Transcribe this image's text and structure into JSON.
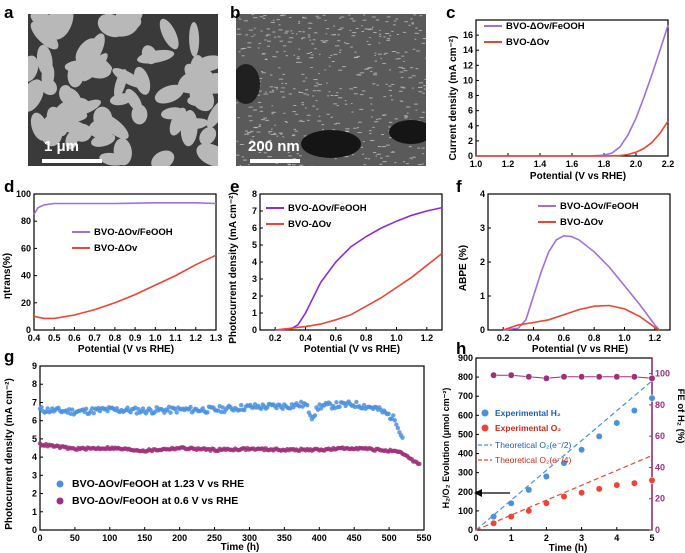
{
  "panels": {
    "a": {
      "letter": "a",
      "scale_bar": "1 μm"
    },
    "b": {
      "letter": "b",
      "scale_bar": "200 nm"
    },
    "c": {
      "letter": "c",
      "xlabel": "Potential (V vs RHE)",
      "ylabel": "Current density (mA cm⁻²)",
      "legend": [
        "BVO-ΔOv/FeOOH",
        "BVO-ΔOv"
      ]
    },
    "d": {
      "letter": "d",
      "xlabel": "Potential (V vs RHE)",
      "ylabel": "ηtrans(%)",
      "legend": [
        "BVO-ΔOv/FeOOH",
        "BVO-ΔOv"
      ]
    },
    "e": {
      "letter": "e",
      "xlabel": "Potential (V vs RHE)",
      "ylabel": "Photocurrent density (mA cm⁻²)",
      "legend": [
        "BVO-ΔOv/FeOOH",
        "BVO-ΔOv"
      ]
    },
    "f": {
      "letter": "f",
      "xlabel": "Potential (V vs RHE)",
      "ylabel": "ABPE (%)",
      "legend": [
        "BVO-ΔOv/FeOOH",
        "BVO-ΔOv"
      ]
    },
    "g": {
      "letter": "g",
      "xlabel": "Time (h)",
      "ylabel": "Photocurrent density (mA cm⁻²)",
      "legend": [
        "BVO-ΔOv/FeOOH at 1.23 V vs RHE",
        "BVO-ΔOv/FeOOH at 0.6 V vs RHE"
      ]
    },
    "h": {
      "letter": "h",
      "xlabel": "Time (h)",
      "ylabel": "H₂/O₂ Evolution (μmol cm⁻²)",
      "ylabel2": "FE of H₂ (%)",
      "legend": [
        "Experimental H₂",
        "Experimental O₂",
        "Theoretical O₂(e⁻/2)",
        "Theoretical O₂(e⁻/4)"
      ]
    }
  },
  "colors": {
    "purple": "#a070e0",
    "red": "#ee4433",
    "blue": "#4a90e0",
    "magenta": "#a0307a",
    "violet": "#8a2be2"
  },
  "chart_data": [
    {
      "id": "c",
      "type": "line",
      "xlim": [
        1.0,
        2.2
      ],
      "ylim": [
        0,
        18
      ],
      "xticks": [
        "1.0",
        "1.2",
        "1.4",
        "1.6",
        "1.8",
        "2.0",
        "2.2"
      ],
      "yticks": [
        "0",
        "2",
        "4",
        "6",
        "8",
        "10",
        "12",
        "14",
        "16"
      ],
      "series": [
        {
          "name": "BVO-ΔOv/FeOOH",
          "x": [
            1.0,
            1.7,
            1.8,
            1.85,
            1.9,
            1.95,
            2.0,
            2.05,
            2.1,
            2.15,
            2.2
          ],
          "y": [
            0,
            0,
            0.1,
            0.4,
            1.2,
            2.8,
            5.0,
            7.8,
            10.8,
            14.0,
            17.3
          ]
        },
        {
          "name": "BVO-ΔOv",
          "x": [
            1.0,
            1.8,
            1.9,
            1.95,
            2.0,
            2.05,
            2.1,
            2.15,
            2.2
          ],
          "y": [
            0,
            0,
            0.05,
            0.2,
            0.5,
            1.0,
            1.8,
            3.0,
            4.6
          ]
        }
      ]
    },
    {
      "id": "d",
      "type": "line",
      "xlim": [
        0.4,
        1.3
      ],
      "ylim": [
        0,
        100
      ],
      "xticks": [
        "0.4",
        "0.5",
        "0.6",
        "0.7",
        "0.8",
        "0.9",
        "1.0",
        "1.1",
        "1.2",
        "1.3"
      ],
      "yticks": [
        "0",
        "20",
        "40",
        "60",
        "80",
        "100"
      ],
      "series": [
        {
          "name": "BVO-ΔOv/FeOOH",
          "x": [
            0.4,
            0.42,
            0.45,
            0.5,
            0.6,
            0.8,
            1.0,
            1.2,
            1.3
          ],
          "y": [
            85,
            90,
            92,
            93,
            93,
            93,
            93.5,
            93.5,
            93
          ]
        },
        {
          "name": "BVO-ΔOv",
          "x": [
            0.4,
            0.45,
            0.5,
            0.6,
            0.7,
            0.8,
            0.9,
            1.0,
            1.1,
            1.2,
            1.3
          ],
          "y": [
            10,
            8.5,
            8.5,
            11,
            15,
            20,
            26,
            33,
            40,
            48,
            55
          ]
        }
      ]
    },
    {
      "id": "e",
      "type": "line",
      "xlim": [
        0.1,
        1.3
      ],
      "ylim": [
        0,
        8
      ],
      "xticks": [
        "0.2",
        "0.4",
        "0.6",
        "0.8",
        "1.0",
        "1.2"
      ],
      "yticks": [
        "0",
        "1",
        "2",
        "3",
        "4",
        "5",
        "6",
        "7",
        "8"
      ],
      "series": [
        {
          "name": "BVO-ΔOv/FeOOH",
          "x": [
            0.2,
            0.3,
            0.35,
            0.4,
            0.45,
            0.5,
            0.6,
            0.7,
            0.8,
            0.9,
            1.0,
            1.1,
            1.2,
            1.3
          ],
          "y": [
            0,
            0.05,
            0.3,
            1.0,
            1.9,
            2.8,
            4.0,
            4.9,
            5.5,
            6.0,
            6.4,
            6.75,
            7.0,
            7.2
          ]
        },
        {
          "name": "BVO-ΔOv",
          "x": [
            0.2,
            0.3,
            0.4,
            0.5,
            0.6,
            0.7,
            0.8,
            0.9,
            1.0,
            1.1,
            1.2,
            1.3
          ],
          "y": [
            0,
            0.1,
            0.2,
            0.35,
            0.6,
            0.9,
            1.4,
            1.9,
            2.5,
            3.1,
            3.8,
            4.5
          ]
        }
      ]
    },
    {
      "id": "f",
      "type": "line",
      "xlim": [
        0.1,
        1.3
      ],
      "ylim": [
        0,
        4
      ],
      "xticks": [
        "0.2",
        "0.4",
        "0.6",
        "0.8",
        "1.0",
        "1.2"
      ],
      "yticks": [
        "0",
        "1",
        "2",
        "3",
        "4"
      ],
      "series": [
        {
          "name": "BVO-ΔOv/FeOOH",
          "x": [
            0.2,
            0.3,
            0.35,
            0.4,
            0.45,
            0.5,
            0.55,
            0.6,
            0.65,
            0.7,
            0.8,
            0.9,
            1.0,
            1.1,
            1.2,
            1.23
          ],
          "y": [
            0,
            0.05,
            0.3,
            1.0,
            1.7,
            2.3,
            2.65,
            2.77,
            2.75,
            2.65,
            2.3,
            1.85,
            1.3,
            0.75,
            0.15,
            0
          ]
        },
        {
          "name": "BVO-ΔOv",
          "x": [
            0.2,
            0.3,
            0.4,
            0.5,
            0.6,
            0.7,
            0.8,
            0.9,
            1.0,
            1.1,
            1.2,
            1.23
          ],
          "y": [
            0,
            0.15,
            0.22,
            0.3,
            0.45,
            0.6,
            0.7,
            0.72,
            0.62,
            0.4,
            0.08,
            0
          ]
        }
      ]
    },
    {
      "id": "g",
      "type": "scatter",
      "xlim": [
        0,
        550
      ],
      "ylim": [
        0,
        9
      ],
      "xticks": [
        "0",
        "50",
        "100",
        "150",
        "200",
        "250",
        "300",
        "350",
        "400",
        "450",
        "500",
        "550"
      ],
      "yticks": [
        "0",
        "1",
        "2",
        "3",
        "4",
        "5",
        "6",
        "7",
        "8",
        "9"
      ],
      "series": [
        {
          "name": "BVO-ΔOv/FeOOH at 1.23 V vs RHE",
          "x": [
            0,
            50,
            100,
            150,
            200,
            250,
            300,
            350,
            380,
            390,
            400,
            450,
            480,
            500,
            510,
            520
          ],
          "y": [
            6.6,
            6.5,
            6.6,
            6.55,
            6.6,
            6.6,
            6.75,
            6.8,
            6.9,
            6.2,
            6.8,
            6.9,
            6.7,
            6.3,
            6.0,
            5.0
          ]
        },
        {
          "name": "BVO-ΔOv/FeOOH at 0.6 V vs RHE",
          "x": [
            0,
            50,
            100,
            150,
            200,
            250,
            300,
            350,
            400,
            450,
            500,
            520,
            530,
            545
          ],
          "y": [
            4.7,
            4.45,
            4.5,
            4.35,
            4.5,
            4.4,
            4.45,
            4.4,
            4.4,
            4.5,
            4.35,
            4.2,
            3.9,
            3.6
          ]
        }
      ]
    },
    {
      "id": "h",
      "type": "scatter",
      "xlim": [
        0,
        5
      ],
      "ylim": [
        0,
        900
      ],
      "y2lim": [
        0,
        110
      ],
      "xticks": [
        "0",
        "1",
        "2",
        "3",
        "4",
        "5"
      ],
      "yticks": [
        "0",
        "100",
        "200",
        "300",
        "400",
        "500",
        "600",
        "700",
        "800",
        "900"
      ],
      "y2ticks": [
        "0",
        "20",
        "40",
        "60",
        "80",
        "100"
      ],
      "series": [
        {
          "name": "Experimental H₂",
          "x": [
            0.5,
            1.0,
            1.5,
            2.0,
            2.5,
            3.0,
            3.5,
            4.0,
            4.5,
            5.0
          ],
          "y": [
            70,
            140,
            210,
            280,
            350,
            420,
            490,
            560,
            625,
            690
          ]
        },
        {
          "name": "Experimental O₂",
          "x": [
            0.5,
            1.0,
            1.5,
            2.0,
            2.5,
            3.0,
            3.5,
            4.0,
            4.5,
            5.0
          ],
          "y": [
            35,
            70,
            100,
            140,
            175,
            195,
            215,
            235,
            245,
            260
          ]
        },
        {
          "name": "Theoretical O₂(e⁻/2)",
          "x": [
            0,
            5
          ],
          "y": [
            0,
            780
          ]
        },
        {
          "name": "Theoretical O₂(e⁻/4)",
          "x": [
            0,
            5
          ],
          "y": [
            0,
            390
          ]
        },
        {
          "name": "FE of H₂",
          "axis": "right",
          "x": [
            0.5,
            1.0,
            1.5,
            2.0,
            2.5,
            3.0,
            3.5,
            4.0,
            4.5,
            5.0
          ],
          "y": [
            99,
            99,
            98,
            97,
            98,
            98,
            98,
            98,
            98,
            97
          ]
        }
      ]
    }
  ]
}
